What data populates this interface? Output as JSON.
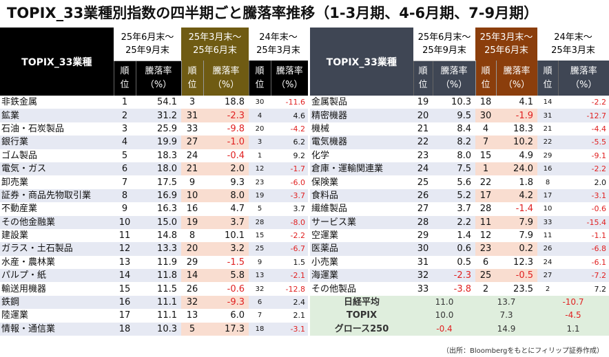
{
  "title": "TOPIX_33業種別指数の四半期ごと騰落率推移（1-3月期、4-6月期、7-9月期）",
  "source": "（出所：Bloombergをもとにフィリップ証券作成）",
  "headers": {
    "sector": "TOPIX_33業種",
    "periods": [
      {
        "line1": "25年6月末～",
        "line2": "25年9月末"
      },
      {
        "line1": "25年3月末～",
        "line2": "25年6月末"
      },
      {
        "line1": "24年末～",
        "line2": "25年3月末"
      }
    ],
    "rank": [
      "順",
      "位"
    ],
    "change": [
      "騰落率",
      "（%）"
    ]
  },
  "colors": {
    "dark_header": "#000000",
    "olive_header": "#6f5b13",
    "rust_header": "#8b3e0c",
    "negative": "#e02020"
  },
  "left_rows": [
    {
      "name": "非鉄金属",
      "r1": "1",
      "c1": "54.1",
      "r2": "3",
      "c2": "18.8",
      "r3": "30",
      "c3": "-11.6"
    },
    {
      "name": "鉱業",
      "r1": "2",
      "c1": "31.2",
      "r2": "31",
      "c2": "-2.3",
      "r3": "4",
      "c3": "4.6"
    },
    {
      "name": "石油・石炭製品",
      "r1": "3",
      "c1": "25.9",
      "r2": "33",
      "c2": "-9.8",
      "r3": "20",
      "c3": "-4.2"
    },
    {
      "name": "銀行業",
      "r1": "4",
      "c1": "19.9",
      "r2": "27",
      "c2": "-1.0",
      "r3": "3",
      "c3": "6.2"
    },
    {
      "name": "ゴム製品",
      "r1": "5",
      "c1": "18.3",
      "r2": "24",
      "c2": "-0.4",
      "r3": "1",
      "c3": "9.2"
    },
    {
      "name": "電気・ガス",
      "r1": "6",
      "c1": "18.0",
      "r2": "21",
      "c2": "2.0",
      "r3": "12",
      "c3": "-1.7"
    },
    {
      "name": "卸売業",
      "r1": "7",
      "c1": "17.5",
      "r2": "9",
      "c2": "9.3",
      "r3": "23",
      "c3": "-6.0"
    },
    {
      "name": "証券・商品先物取引業",
      "r1": "8",
      "c1": "16.9",
      "r2": "10",
      "c2": "8.0",
      "r3": "19",
      "c3": "-3.7"
    },
    {
      "name": "不動産業",
      "r1": "9",
      "c1": "16.3",
      "r2": "16",
      "c2": "4.7",
      "r3": "5",
      "c3": "3.7"
    },
    {
      "name": "その他金融業",
      "r1": "10",
      "c1": "15.0",
      "r2": "19",
      "c2": "3.7",
      "r3": "28",
      "c3": "-8.0"
    },
    {
      "name": "建設業",
      "r1": "11",
      "c1": "14.8",
      "r2": "8",
      "c2": "10.1",
      "r3": "15",
      "c3": "-2.2"
    },
    {
      "name": "ガラス・土石製品",
      "r1": "12",
      "c1": "13.3",
      "r2": "20",
      "c2": "3.2",
      "r3": "25",
      "c3": "-6.7"
    },
    {
      "name": "水産・農林業",
      "r1": "13",
      "c1": "11.9",
      "r2": "29",
      "c2": "-1.5",
      "r3": "9",
      "c3": "1.5"
    },
    {
      "name": "パルプ・紙",
      "r1": "14",
      "c1": "11.8",
      "r2": "14",
      "c2": "5.8",
      "r3": "13",
      "c3": "-2.1"
    },
    {
      "name": "輸送用機器",
      "r1": "15",
      "c1": "11.5",
      "r2": "26",
      "c2": "-0.6",
      "r3": "32",
      "c3": "-12.8"
    },
    {
      "name": "鉄鋼",
      "r1": "16",
      "c1": "11.1",
      "r2": "32",
      "c2": "-9.3",
      "r3": "6",
      "c3": "2.4"
    },
    {
      "name": "陸運業",
      "r1": "17",
      "c1": "11.1",
      "r2": "13",
      "c2": "6.0",
      "r3": "7",
      "c3": "2.1"
    },
    {
      "name": "情報・通信業",
      "r1": "18",
      "c1": "10.3",
      "r2": "5",
      "c2": "17.3",
      "r3": "18",
      "c3": "-3.1"
    }
  ],
  "right_rows": [
    {
      "name": "金属製品",
      "r1": "19",
      "c1": "10.3",
      "r2": "18",
      "c2": "4.1",
      "r3": "14",
      "c3": "-2.2"
    },
    {
      "name": "精密機器",
      "r1": "20",
      "c1": "9.5",
      "r2": "30",
      "c2": "-1.9",
      "r3": "31",
      "c3": "-12.7"
    },
    {
      "name": "機械",
      "r1": "21",
      "c1": "8.4",
      "r2": "4",
      "c2": "18.3",
      "r3": "21",
      "c3": "-4.4"
    },
    {
      "name": "電気機器",
      "r1": "22",
      "c1": "8.2",
      "r2": "7",
      "c2": "10.2",
      "r3": "22",
      "c3": "-5.5"
    },
    {
      "name": "化学",
      "r1": "23",
      "c1": "8.0",
      "r2": "15",
      "c2": "4.9",
      "r3": "29",
      "c3": "-9.1"
    },
    {
      "name": "倉庫・運輸関連業",
      "r1": "24",
      "c1": "7.5",
      "r2": "1",
      "c2": "24.0",
      "r3": "16",
      "c3": "-2.2"
    },
    {
      "name": "保険業",
      "r1": "25",
      "c1": "5.6",
      "r2": "22",
      "c2": "1.8",
      "r3": "8",
      "c3": "2.0"
    },
    {
      "name": "食料品",
      "r1": "26",
      "c1": "5.2",
      "r2": "17",
      "c2": "4.2",
      "r3": "17",
      "c3": "-3.1"
    },
    {
      "name": "繊維製品",
      "r1": "27",
      "c1": "3.7",
      "r2": "28",
      "c2": "-1.4",
      "r3": "10",
      "c3": "-0.6"
    },
    {
      "name": "サービス業",
      "r1": "28",
      "c1": "2.2",
      "r2": "11",
      "c2": "7.9",
      "r3": "33",
      "c3": "-15.4"
    },
    {
      "name": "空運業",
      "r1": "29",
      "c1": "1.4",
      "r2": "12",
      "c2": "7.9",
      "r3": "11",
      "c3": "-1.1"
    },
    {
      "name": "医薬品",
      "r1": "30",
      "c1": "0.6",
      "r2": "23",
      "c2": "0.2",
      "r3": "26",
      "c3": "-6.8"
    },
    {
      "name": "小売業",
      "r1": "31",
      "c1": "0.5",
      "r2": "6",
      "c2": "12.3",
      "r3": "24",
      "c3": "-6.1"
    },
    {
      "name": "海運業",
      "r1": "32",
      "c1": "-2.3",
      "r2": "25",
      "c2": "-0.5",
      "r3": "27",
      "c3": "-7.2"
    },
    {
      "name": "その他製品",
      "r1": "33",
      "c1": "-3.8",
      "r2": "2",
      "c2": "23.5",
      "r3": "2",
      "c3": "7.2"
    }
  ],
  "indices": [
    {
      "name": "日経平均",
      "c1": "11.0",
      "c2": "13.7",
      "c3": "-10.7"
    },
    {
      "name": "TOPIX",
      "c1": "10.0",
      "c2": "7.3",
      "c3": "-4.5"
    },
    {
      "name": "グロース250",
      "c1": "-0.4",
      "c2": "14.9",
      "c3": "1.1"
    }
  ]
}
